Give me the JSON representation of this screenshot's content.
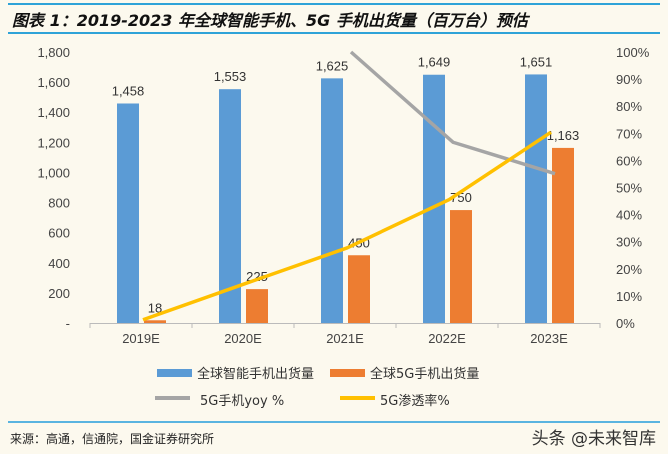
{
  "title": "图表 1：2019-2023 年全球智能手机、5G 手机出货量（百万台）预估",
  "source": "来源：高通，信通院，国金证券研究所",
  "watermark": "头条 @未来智库",
  "chart_data": {
    "type": "bar",
    "title": "图表 1：2019-2023 年全球智能手机、5G 手机出货量（百万台）预估",
    "categories": [
      "2019E",
      "2020E",
      "2021E",
      "2022E",
      "2023E"
    ],
    "ylim": [
      0,
      1800
    ],
    "yticks": [
      "-",
      "200",
      "400",
      "600",
      "800",
      "1,000",
      "1,200",
      "1,400",
      "1,600",
      "1,800"
    ],
    "y2lim": [
      0,
      100
    ],
    "y2ticks": [
      "0%",
      "10%",
      "20%",
      "30%",
      "40%",
      "50%",
      "60%",
      "70%",
      "80%",
      "90%",
      "100%"
    ],
    "grid": false,
    "legend_placement": "bottom",
    "series": [
      {
        "name": "全球智能手机出货量",
        "type": "bar",
        "axis": "left",
        "color": "#5b9bd5",
        "values": [
          1458,
          1553,
          1625,
          1649,
          1651
        ],
        "labels": [
          "1,458",
          "1,553",
          "1,625",
          "1,649",
          "1,651"
        ]
      },
      {
        "name": "全球5G手机出货量",
        "type": "bar",
        "axis": "left",
        "color": "#ed7d31",
        "values": [
          18,
          225,
          450,
          750,
          1163
        ],
        "labels": [
          "18",
          "225",
          "450",
          "750",
          "1,163"
        ]
      },
      {
        "name": "5G手机yoy %",
        "type": "line",
        "axis": "right",
        "color": "#a5a5a5",
        "values": [
          null,
          null,
          100,
          66.7,
          55.1
        ]
      },
      {
        "name": "5G渗透率%",
        "type": "line",
        "axis": "right",
        "color": "#ffc000",
        "values": [
          1.2,
          14.5,
          27.7,
          45.5,
          70.4
        ]
      }
    ]
  }
}
